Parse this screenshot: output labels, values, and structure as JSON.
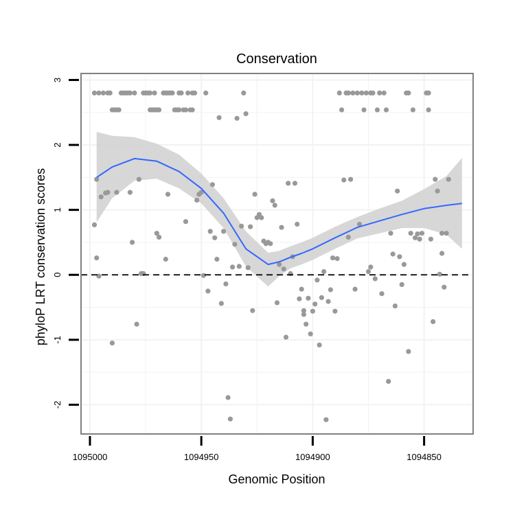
{
  "chart_data": {
    "type": "scatter",
    "title": "Conservation",
    "xlabel": "Genomic Position",
    "ylabel": "phyloP LRT conservation scores",
    "x_reversed": true,
    "xlim": [
      1095004,
      1094828
    ],
    "ylim": [
      -2.45,
      3.1
    ],
    "x_ticks": [
      1095000,
      1094950,
      1094900,
      1094850
    ],
    "x_tick_labels": [
      "1095000",
      "1094950",
      "1094900",
      "1094850"
    ],
    "y_ticks": [
      -2,
      -1,
      0,
      1,
      2,
      3
    ],
    "y_tick_labels": [
      "-2",
      "-1",
      "0",
      "1",
      "2",
      "3"
    ],
    "reference_line": {
      "y": 0,
      "style": "dashed"
    },
    "colors": {
      "points": "#999999",
      "smooth_line": "#3366ff",
      "confidence_band": "#d3d3d3",
      "panel_border": "#808080",
      "grid": "#f2f2f2"
    },
    "series": [
      {
        "name": "scores",
        "points": [
          [
            1094998,
            0.77
          ],
          [
            1094998,
            2.8
          ],
          [
            1094997,
            1.47
          ],
          [
            1094997,
            0.26
          ],
          [
            1094996,
            2.8
          ],
          [
            1094996,
            -0.02
          ],
          [
            1094995,
            1.2
          ],
          [
            1094994,
            2.8
          ],
          [
            1094993,
            1.26
          ],
          [
            1094992,
            1.27
          ],
          [
            1094992,
            2.8
          ],
          [
            1094991,
            2.8
          ],
          [
            1094990,
            -1.05
          ],
          [
            1094990,
            2.54
          ],
          [
            1094989,
            2.54
          ],
          [
            1094988,
            1.27
          ],
          [
            1094988,
            2.54
          ],
          [
            1094987,
            2.54
          ],
          [
            1094986,
            2.8
          ],
          [
            1094985,
            2.8
          ],
          [
            1094984,
            2.8
          ],
          [
            1094983,
            2.8
          ],
          [
            1094982,
            1.27
          ],
          [
            1094982,
            2.8
          ],
          [
            1094981,
            0.5
          ],
          [
            1094980,
            2.8
          ],
          [
            1094979,
            -0.76
          ],
          [
            1094978,
            1.47
          ],
          [
            1094977,
            0.02
          ],
          [
            1094976,
            0.02
          ],
          [
            1094976,
            2.8
          ],
          [
            1094975,
            2.8
          ],
          [
            1094974,
            2.8
          ],
          [
            1094973,
            2.8
          ],
          [
            1094973,
            2.54
          ],
          [
            1094972,
            2.54
          ],
          [
            1094971,
            2.8
          ],
          [
            1094971,
            2.54
          ],
          [
            1094970,
            0.64
          ],
          [
            1094970,
            2.54
          ],
          [
            1094969,
            0.58
          ],
          [
            1094969,
            2.54
          ],
          [
            1094967,
            2.8
          ],
          [
            1094966,
            2.8
          ],
          [
            1094966,
            0.24
          ],
          [
            1094965,
            2.8
          ],
          [
            1094965,
            1.24
          ],
          [
            1094964,
            2.8
          ],
          [
            1094963,
            2.8
          ],
          [
            1094962,
            2.54
          ],
          [
            1094961,
            2.54
          ],
          [
            1094960,
            2.54
          ],
          [
            1094960,
            2.8
          ],
          [
            1094959,
            2.8
          ],
          [
            1094958,
            2.54
          ],
          [
            1094957,
            0.82
          ],
          [
            1094957,
            2.54
          ],
          [
            1094956,
            2.8
          ],
          [
            1094955,
            2.54
          ],
          [
            1094954,
            2.8
          ],
          [
            1094954,
            2.54
          ],
          [
            1094953,
            2.8
          ],
          [
            1094952,
            1.15
          ],
          [
            1094951,
            1.24
          ],
          [
            1094950,
            1.27
          ],
          [
            1094949,
            -0.01
          ],
          [
            1094948,
            2.8
          ],
          [
            1094947,
            -0.25
          ],
          [
            1094946,
            0.67
          ],
          [
            1094945,
            1.39
          ],
          [
            1094944,
            0.57
          ],
          [
            1094943,
            0.24
          ],
          [
            1094942,
            2.42
          ],
          [
            1094941,
            -0.44
          ],
          [
            1094940,
            0.67
          ],
          [
            1094939,
            -0.14
          ],
          [
            1094938,
            -1.89
          ],
          [
            1094937,
            -2.22
          ],
          [
            1094936,
            0.12
          ],
          [
            1094935,
            0.47
          ],
          [
            1094934,
            2.41
          ],
          [
            1094933,
            0.13
          ],
          [
            1094932,
            0.75
          ],
          [
            1094931,
            2.8
          ],
          [
            1094930,
            2.48
          ],
          [
            1094929,
            0.11
          ],
          [
            1094928,
            0.74
          ],
          [
            1094927,
            -0.55
          ],
          [
            1094926,
            1.24
          ],
          [
            1094925,
            0.88
          ],
          [
            1094924,
            0.93
          ],
          [
            1094923,
            0.88
          ],
          [
            1094922,
            0.52
          ],
          [
            1094921,
            0.48
          ],
          [
            1094920,
            0.5
          ],
          [
            1094919,
            0.48
          ],
          [
            1094918,
            1.14
          ],
          [
            1094917,
            1.07
          ],
          [
            1094916,
            -0.43
          ],
          [
            1094915,
            0.16
          ],
          [
            1094914,
            0.73
          ],
          [
            1094913,
            0.09
          ],
          [
            1094912,
            -0.96
          ],
          [
            1094911,
            1.41
          ],
          [
            1094910,
            0.02
          ],
          [
            1094909,
            0.28
          ],
          [
            1094908,
            1.41
          ],
          [
            1094907,
            0.78
          ],
          [
            1094906,
            -0.37
          ],
          [
            1094905,
            -0.22
          ],
          [
            1094904,
            -0.61
          ],
          [
            1094904,
            -0.55
          ],
          [
            1094903,
            -0.76
          ],
          [
            1094902,
            -0.36
          ],
          [
            1094901,
            -0.91
          ],
          [
            1094900,
            -0.56
          ],
          [
            1094899,
            -0.45
          ],
          [
            1094898,
            -0.08
          ],
          [
            1094897,
            -1.08
          ],
          [
            1094896,
            -0.35
          ],
          [
            1094895,
            0.05
          ],
          [
            1094894,
            -2.23
          ],
          [
            1094893,
            -0.41
          ],
          [
            1094892,
            -0.23
          ],
          [
            1094891,
            0.26
          ],
          [
            1094890,
            -0.56
          ],
          [
            1094889,
            0.25
          ],
          [
            1094888,
            2.8
          ],
          [
            1094887,
            2.54
          ],
          [
            1094886,
            1.46
          ],
          [
            1094885,
            2.8
          ],
          [
            1094884,
            0.58
          ],
          [
            1094884,
            2.8
          ],
          [
            1094883,
            1.47
          ],
          [
            1094882,
            2.8
          ],
          [
            1094881,
            -0.22
          ],
          [
            1094880,
            2.8
          ],
          [
            1094879,
            0.78
          ],
          [
            1094878,
            2.8
          ],
          [
            1094877,
            2.54
          ],
          [
            1094876,
            2.8
          ],
          [
            1094875,
            0.05
          ],
          [
            1094874,
            0.12
          ],
          [
            1094874,
            2.8
          ],
          [
            1094873,
            2.8
          ],
          [
            1094872,
            -0.06
          ],
          [
            1094871,
            2.54
          ],
          [
            1094870,
            2.8
          ],
          [
            1094869,
            -0.29
          ],
          [
            1094868,
            2.8
          ],
          [
            1094867,
            2.54
          ],
          [
            1094866,
            -1.64
          ],
          [
            1094865,
            0.64
          ],
          [
            1094864,
            0.32
          ],
          [
            1094863,
            -0.48
          ],
          [
            1094862,
            1.29
          ],
          [
            1094861,
            0.28
          ],
          [
            1094860,
            -0.15
          ],
          [
            1094859,
            0.16
          ],
          [
            1094858,
            2.8
          ],
          [
            1094857,
            -1.18
          ],
          [
            1094857,
            2.8
          ],
          [
            1094856,
            0.64
          ],
          [
            1094855,
            2.54
          ],
          [
            1094854,
            0.57
          ],
          [
            1094853,
            0.63
          ],
          [
            1094852,
            0.55
          ],
          [
            1094852,
            0.55
          ],
          [
            1094851,
            0.64
          ],
          [
            1094849,
            2.8
          ],
          [
            1094848,
            2.54
          ],
          [
            1094848,
            2.8
          ],
          [
            1094847,
            0.55
          ],
          [
            1094846,
            -0.72
          ],
          [
            1094845,
            1.47
          ],
          [
            1094844,
            1.29
          ],
          [
            1094843,
            0.01
          ],
          [
            1094842,
            0.33
          ],
          [
            1094842,
            0.64
          ],
          [
            1094841,
            -0.19
          ],
          [
            1094840,
            0.64
          ],
          [
            1094839,
            1.47
          ]
        ]
      }
    ],
    "smooth": {
      "method": "loess",
      "x": [
        1094997,
        1094990,
        1094980,
        1094970,
        1094960,
        1094950,
        1094940,
        1094930,
        1094920,
        1094915,
        1094910,
        1094905,
        1094900,
        1094890,
        1094880,
        1094870,
        1094860,
        1094850,
        1094840,
        1094833
      ],
      "y": [
        1.5,
        1.66,
        1.79,
        1.75,
        1.59,
        1.33,
        0.95,
        0.4,
        0.16,
        0.2,
        0.27,
        0.33,
        0.4,
        0.57,
        0.73,
        0.83,
        0.93,
        1.02,
        1.07,
        1.1
      ],
      "upper": [
        2.2,
        2.14,
        2.12,
        2.02,
        1.85,
        1.56,
        1.18,
        0.67,
        0.34,
        0.37,
        0.44,
        0.5,
        0.57,
        0.74,
        0.89,
        1.02,
        1.14,
        1.32,
        1.52,
        1.8
      ],
      "lower": [
        0.81,
        1.18,
        1.45,
        1.48,
        1.33,
        1.1,
        0.72,
        0.13,
        -0.18,
        -0.02,
        0.1,
        0.16,
        0.23,
        0.4,
        0.56,
        0.64,
        0.72,
        0.72,
        0.62,
        0.4
      ]
    }
  }
}
